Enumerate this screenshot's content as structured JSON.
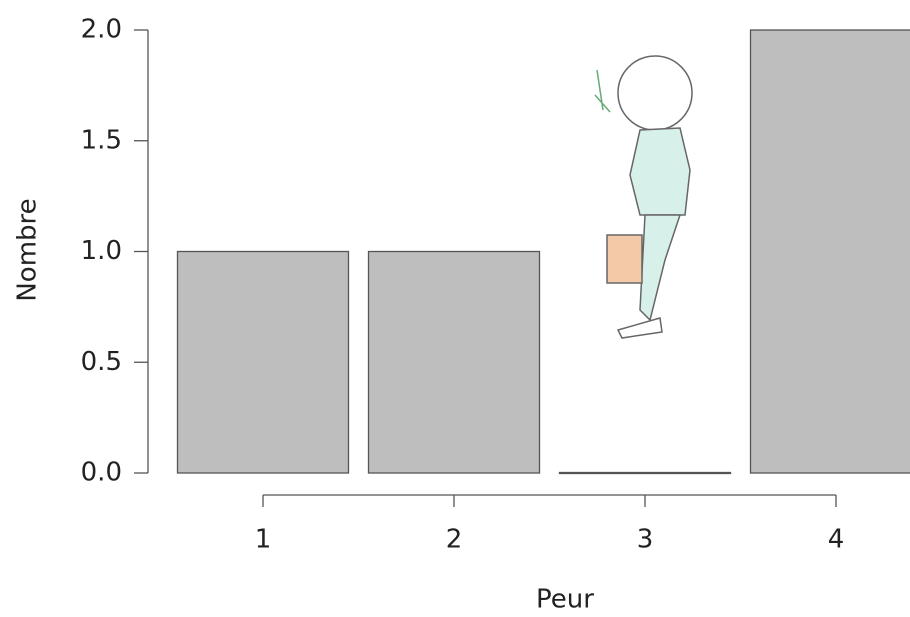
{
  "chart_data": {
    "type": "bar",
    "xlabel": "Peur",
    "ylabel": "Nombre",
    "categories": [
      "1",
      "2",
      "3",
      "4"
    ],
    "values": [
      1,
      1,
      0,
      2
    ],
    "color": "#bebebe",
    "ylim": [
      0,
      2
    ],
    "yticks": [
      {
        "value": 0,
        "label": "0.0"
      },
      0.5,
      {
        "value": 1,
        "label": "1.0"
      },
      1.5,
      {
        "value": 2,
        "label": "2.0"
      }
    ],
    "grid": false
  }
}
